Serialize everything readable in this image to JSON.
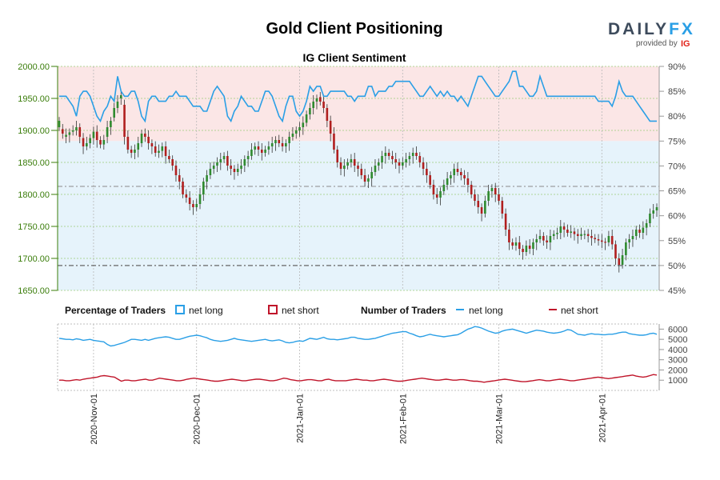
{
  "title": "Gold Client Positioning",
  "logo": {
    "brand_a": "DAILY",
    "brand_b": "FX",
    "provided_by": "provided by",
    "ig": "IG"
  },
  "chart_data": [
    {
      "type": "candlestick-with-sentiment",
      "title": "IG Client Sentiment",
      "price_axis": {
        "ylim": [
          1650,
          2000
        ],
        "ticks": [
          "2000.00",
          "1950.00",
          "1900.00",
          "1850.00",
          "1800.00",
          "1750.00",
          "1700.00",
          "1650.00"
        ],
        "tick_values": [
          2000,
          1950,
          1900,
          1850,
          1800,
          1750,
          1700,
          1650
        ]
      },
      "sentiment_axis": {
        "ylim": [
          45,
          90
        ],
        "ticks": [
          "90%",
          "85%",
          "80%",
          "75%",
          "70%",
          "65%",
          "60%",
          "55%",
          "50%",
          "45%"
        ],
        "tick_values": [
          90,
          85,
          80,
          75,
          70,
          65,
          60,
          55,
          50,
          45
        ]
      },
      "reference_lines": {
        "long_ref_pct": 65.9,
        "short_ref_pct": 50
      },
      "x_labels": [
        "2020-Nov-01",
        "2020-Dec-01",
        "2021-Jan-01",
        "2021-Feb-01",
        "2021-Mar-01",
        "2021-Apr-01"
      ],
      "x_label_index": [
        10,
        40,
        70,
        100,
        128,
        158
      ],
      "n_points": 175,
      "price_close": [
        1915,
        1895,
        1893,
        1897,
        1900,
        1905,
        1890,
        1875,
        1880,
        1888,
        1898,
        1885,
        1878,
        1885,
        1905,
        1915,
        1935,
        1945,
        1955,
        1890,
        1870,
        1865,
        1870,
        1880,
        1895,
        1890,
        1880,
        1875,
        1865,
        1868,
        1875,
        1860,
        1855,
        1845,
        1830,
        1820,
        1800,
        1795,
        1785,
        1780,
        1785,
        1800,
        1820,
        1830,
        1840,
        1845,
        1850,
        1855,
        1860,
        1845,
        1840,
        1835,
        1840,
        1845,
        1855,
        1860,
        1870,
        1875,
        1870,
        1865,
        1870,
        1875,
        1880,
        1885,
        1880,
        1875,
        1880,
        1890,
        1895,
        1900,
        1905,
        1912,
        1925,
        1935,
        1945,
        1950,
        1945,
        1935,
        1915,
        1895,
        1870,
        1850,
        1840,
        1845,
        1850,
        1855,
        1845,
        1840,
        1830,
        1820,
        1825,
        1835,
        1845,
        1850,
        1860,
        1865,
        1860,
        1855,
        1850,
        1845,
        1850,
        1855,
        1860,
        1865,
        1860,
        1850,
        1840,
        1830,
        1815,
        1800,
        1795,
        1805,
        1815,
        1825,
        1830,
        1840,
        1835,
        1830,
        1825,
        1815,
        1800,
        1790,
        1780,
        1770,
        1790,
        1805,
        1810,
        1800,
        1790,
        1770,
        1745,
        1725,
        1720,
        1725,
        1715,
        1710,
        1720,
        1715,
        1725,
        1730,
        1735,
        1728,
        1725,
        1735,
        1738,
        1740,
        1750,
        1745,
        1740,
        1742,
        1738,
        1735,
        1738,
        1738,
        1735,
        1732,
        1730,
        1728,
        1726,
        1725,
        1735,
        1722,
        1700,
        1690,
        1705,
        1725,
        1730,
        1735,
        1745,
        1740,
        1748,
        1755,
        1770,
        1775,
        1780
      ],
      "price_open": [
        1905,
        1902,
        1890,
        1893,
        1898,
        1900,
        1905,
        1888,
        1875,
        1880,
        1888,
        1898,
        1885,
        1878,
        1890,
        1905,
        1920,
        1935,
        1950,
        1940,
        1890,
        1870,
        1865,
        1870,
        1880,
        1895,
        1890,
        1880,
        1875,
        1865,
        1868,
        1875,
        1860,
        1855,
        1845,
        1830,
        1820,
        1800,
        1795,
        1785,
        1780,
        1785,
        1800,
        1820,
        1830,
        1840,
        1845,
        1850,
        1855,
        1860,
        1845,
        1840,
        1835,
        1840,
        1845,
        1855,
        1860,
        1870,
        1875,
        1870,
        1865,
        1870,
        1875,
        1880,
        1885,
        1880,
        1875,
        1880,
        1890,
        1895,
        1900,
        1905,
        1912,
        1925,
        1935,
        1945,
        1952,
        1945,
        1935,
        1915,
        1895,
        1870,
        1850,
        1840,
        1845,
        1850,
        1855,
        1845,
        1840,
        1830,
        1820,
        1825,
        1835,
        1845,
        1850,
        1860,
        1865,
        1860,
        1855,
        1850,
        1845,
        1850,
        1855,
        1860,
        1865,
        1860,
        1850,
        1840,
        1830,
        1815,
        1800,
        1795,
        1805,
        1815,
        1825,
        1830,
        1840,
        1835,
        1830,
        1825,
        1815,
        1800,
        1790,
        1780,
        1770,
        1790,
        1805,
        1810,
        1800,
        1790,
        1770,
        1745,
        1725,
        1720,
        1725,
        1715,
        1710,
        1720,
        1715,
        1725,
        1730,
        1735,
        1728,
        1725,
        1735,
        1738,
        1740,
        1750,
        1745,
        1740,
        1742,
        1738,
        1735,
        1738,
        1738,
        1735,
        1732,
        1730,
        1728,
        1726,
        1725,
        1735,
        1722,
        1700,
        1690,
        1705,
        1725,
        1730,
        1735,
        1745,
        1740,
        1748,
        1755,
        1770,
        1775
      ],
      "sentiment_long_pct": [
        84,
        84,
        84,
        83,
        82,
        80,
        84,
        85,
        85,
        84,
        82,
        80,
        79,
        81,
        82,
        84,
        83,
        88,
        85,
        84,
        84,
        85,
        85,
        83,
        80,
        79,
        83,
        84,
        84,
        83,
        83,
        83,
        84,
        84,
        85,
        84,
        84,
        84,
        83,
        82,
        82,
        82,
        81,
        81,
        83,
        85,
        86,
        85,
        84,
        80,
        79,
        81,
        82,
        84,
        83,
        82,
        82,
        81,
        81,
        83,
        85,
        85,
        84,
        82,
        80,
        79,
        82,
        84,
        84,
        81,
        80,
        81,
        83,
        86,
        85,
        86,
        86,
        84,
        84,
        85,
        85,
        85,
        85,
        85,
        84,
        84,
        83,
        84,
        84,
        84,
        86,
        86,
        84,
        85,
        85,
        85,
        86,
        86,
        87,
        87,
        87,
        87,
        87,
        86,
        85,
        84,
        84,
        85,
        86,
        85,
        84,
        85,
        84,
        85,
        84,
        84,
        83,
        84,
        83,
        82,
        84,
        86,
        88,
        88,
        87,
        86,
        85,
        84,
        84,
        85,
        86,
        87,
        89,
        89,
        86,
        86,
        85,
        84,
        84,
        85,
        88,
        86,
        84,
        84,
        84,
        84,
        84,
        84,
        84,
        84,
        84,
        84,
        84,
        84,
        84,
        84,
        84,
        83,
        83,
        83,
        83,
        82,
        84,
        87,
        85,
        84,
        84,
        84,
        83,
        82,
        81,
        80,
        79,
        79,
        79
      ],
      "panel2": {
        "legend_pct_label": "Percentage of Traders",
        "legend_num_label": "Number of Traders",
        "net_long_label": "net long",
        "net_short_label": "net short",
        "ticks": [
          "6000",
          "5000",
          "4000",
          "3000",
          "2000",
          "1000"
        ],
        "tick_values": [
          6000,
          5000,
          4000,
          3000,
          2000,
          1000
        ],
        "ylim": [
          0,
          6500
        ],
        "net_long_count": [
          5100,
          5050,
          5000,
          5000,
          4950,
          5050,
          5000,
          4900,
          4950,
          5000,
          4900,
          4850,
          4800,
          4750,
          4500,
          4350,
          4400,
          4500,
          4600,
          4700,
          4850,
          5000,
          5000,
          4950,
          4900,
          5000,
          4900,
          5000,
          5100,
          5150,
          5200,
          5250,
          5200,
          5100,
          5000,
          5000,
          5100,
          5200,
          5300,
          5350,
          5400,
          5350,
          5250,
          5150,
          5000,
          4900,
          4850,
          4800,
          4850,
          4900,
          5000,
          5100,
          5000,
          4950,
          4900,
          4850,
          4800,
          4850,
          4900,
          4950,
          5000,
          4900,
          4850,
          4900,
          4950,
          4850,
          4700,
          4650,
          4700,
          4800,
          4850,
          4800,
          4950,
          5100,
          5050,
          5000,
          5100,
          5200,
          5050,
          5000,
          5000,
          4950,
          5000,
          5050,
          5100,
          5200,
          5200,
          5100,
          5050,
          5000,
          5000,
          5050,
          5100,
          5200,
          5300,
          5400,
          5500,
          5600,
          5650,
          5700,
          5750,
          5750,
          5600,
          5500,
          5350,
          5250,
          5300,
          5400,
          5500,
          5400,
          5350,
          5300,
          5250,
          5300,
          5350,
          5400,
          5450,
          5600,
          5800,
          6000,
          6100,
          6250,
          6200,
          6100,
          5950,
          5800,
          5700,
          5600,
          5650,
          5800,
          5900,
          5950,
          6000,
          5900,
          5800,
          5700,
          5600,
          5700,
          5800,
          5900,
          5850,
          5800,
          5700,
          5650,
          5600,
          5650,
          5700,
          5800,
          5950,
          5900,
          5700,
          5500,
          5450,
          5400,
          5500,
          5550,
          5500,
          5500,
          5450,
          5450,
          5500,
          5500,
          5550,
          5650,
          5700,
          5700,
          5550,
          5500,
          5450,
          5400,
          5400,
          5450,
          5550,
          5600,
          5500
        ],
        "net_short_count": [
          1000,
          1000,
          950,
          950,
          1000,
          1050,
          1000,
          1100,
          1150,
          1200,
          1250,
          1300,
          1400,
          1450,
          1400,
          1350,
          1300,
          1100,
          900,
          1000,
          1000,
          950,
          950,
          1000,
          1050,
          1100,
          1000,
          1000,
          1100,
          1200,
          1150,
          1100,
          1050,
          1000,
          950,
          950,
          1000,
          1100,
          1150,
          1200,
          1150,
          1100,
          1050,
          1000,
          950,
          900,
          900,
          950,
          1000,
          1050,
          1100,
          1050,
          1000,
          950,
          950,
          1000,
          1050,
          1100,
          1100,
          1050,
          1000,
          950,
          950,
          1000,
          1100,
          1200,
          1150,
          1050,
          1000,
          950,
          950,
          1000,
          1050,
          1050,
          1000,
          950,
          950,
          1050,
          1100,
          1000,
          950,
          950,
          950,
          950,
          1000,
          1050,
          1100,
          1050,
          1000,
          1000,
          950,
          950,
          1000,
          1050,
          1100,
          1050,
          1000,
          950,
          900,
          900,
          950,
          1000,
          1050,
          1100,
          1150,
          1200,
          1150,
          1100,
          1050,
          1000,
          1000,
          1050,
          1100,
          1050,
          1000,
          1000,
          1050,
          1050,
          1000,
          950,
          900,
          900,
          850,
          800,
          850,
          900,
          950,
          1000,
          1050,
          1100,
          1050,
          1000,
          950,
          900,
          850,
          850,
          900,
          950,
          1000,
          1050,
          1000,
          950,
          950,
          1000,
          1050,
          1100,
          1050,
          1000,
          950,
          950,
          1000,
          1050,
          1100,
          1150,
          1200,
          1250,
          1300,
          1250,
          1200,
          1150,
          1200,
          1250,
          1300,
          1350,
          1400,
          1450,
          1500,
          1400,
          1350,
          1300,
          1350,
          1450,
          1550,
          1500
        ]
      }
    }
  ],
  "colors": {
    "net_long": "#2a9fe6",
    "net_short": "#c0152a",
    "long_zone": "#e6f3fb",
    "short_zone": "#fbe6e6",
    "price_axis": "#3a7d0a",
    "bull_candle": "#2f8a2f",
    "bear_candle": "#b01f1f"
  }
}
